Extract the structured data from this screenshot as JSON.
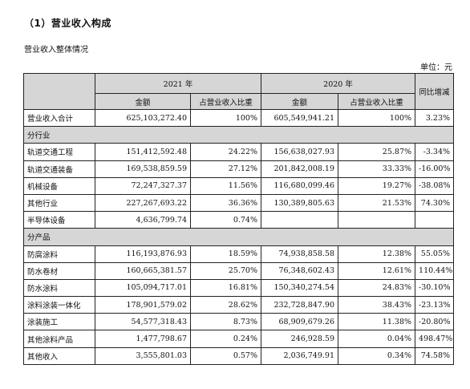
{
  "title": "（1）营业收入构成",
  "subtitle": "营业收入整体情况",
  "unit": "单位：元",
  "headers": {
    "year_2021": "2021 年",
    "year_2020": "2020 年",
    "change": "同比增减",
    "amount_2021": "金额",
    "share_2021": "占营业收入比重",
    "amount_2020": "金额",
    "share_2020": "占营业收入比重"
  },
  "total": {
    "label": "营业收入合计",
    "a21": "625,103,272.40",
    "p21": "100%",
    "a20": "605,549,941.21",
    "p20": "100%",
    "chg": "3.23%"
  },
  "section_industry": "分行业",
  "industry": [
    {
      "label": "轨道交通工程",
      "a21": "151,412,592.48",
      "p21": "24.22%",
      "a20": "156,638,027.93",
      "p20": "25.87%",
      "chg": "-3.34%"
    },
    {
      "label": "轨道交通装备",
      "a21": "169,538,859.59",
      "p21": "27.12%",
      "a20": "201,842,008.19",
      "p20": "33.33%",
      "chg": "-16.00%"
    },
    {
      "label": "机械设备",
      "a21": "72,247,327.37",
      "p21": "11.56%",
      "a20": "116,680,099.46",
      "p20": "19.27%",
      "chg": "-38.08%"
    },
    {
      "label": "其他行业",
      "a21": "227,267,693.22",
      "p21": "36.36%",
      "a20": "130,389,805.63",
      "p20": "21.53%",
      "chg": "74.30%"
    },
    {
      "label": "半导体设备",
      "a21": "4,636,799.74",
      "p21": "0.74%",
      "a20": "",
      "p20": "",
      "chg": ""
    }
  ],
  "section_product": "分产品",
  "product": [
    {
      "label": "防腐涂料",
      "a21": "116,193,876.93",
      "p21": "18.59%",
      "a20": "74,938,858.58",
      "p20": "12.38%",
      "chg": "55.05%"
    },
    {
      "label": "防水卷材",
      "a21": "160,665,381.57",
      "p21": "25.70%",
      "a20": "76,348,602.43",
      "p20": "12.61%",
      "chg": "110.44%"
    },
    {
      "label": "防水涂料",
      "a21": "105,094,717.01",
      "p21": "16.81%",
      "a20": "150,340,274.54",
      "p20": "24.83%",
      "chg": "-30.10%"
    },
    {
      "label": "涂料涂装一体化",
      "a21": "178,901,579.02",
      "p21": "28.62%",
      "a20": "232,728,847.90",
      "p20": "38.43%",
      "chg": "-23.13%"
    },
    {
      "label": "涂装施工",
      "a21": "54,577,318.43",
      "p21": "8.73%",
      "a20": "68,909,679.26",
      "p20": "11.38%",
      "chg": "-20.80%"
    },
    {
      "label": "其他涂料产品",
      "a21": "1,477,798.67",
      "p21": "0.24%",
      "a20": "246,928.59",
      "p20": "0.04%",
      "chg": "498.47%"
    },
    {
      "label": "其他收入",
      "a21": "3,555,801.03",
      "p21": "0.57%",
      "a20": "2,036,749.91",
      "p20": "0.34%",
      "chg": "74.58%"
    }
  ]
}
